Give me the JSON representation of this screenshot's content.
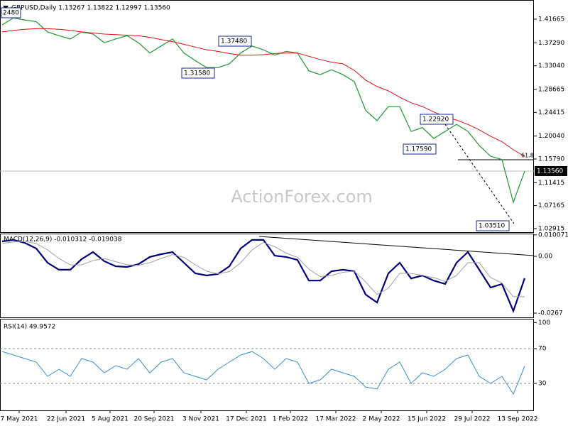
{
  "chart_data": [
    {
      "type": "line",
      "title": "GBPUSD,Daily  1.13267 1.13822 1.12997 1.13560",
      "x": [
        0,
        8,
        16,
        24,
        32,
        40,
        48,
        56,
        64,
        72,
        80,
        88,
        96,
        104,
        112,
        120,
        128,
        136,
        144,
        152,
        160,
        168,
        176,
        184,
        192,
        200,
        208,
        216,
        224,
        232,
        240,
        248,
        256,
        264,
        272,
        280,
        288,
        296,
        304,
        312,
        320,
        328,
        336,
        344,
        352,
        360,
        368
      ],
      "xlim": [
        -1.5,
        374.5
      ],
      "ylim": [
        1.0226,
        1.4521
      ],
      "yticks": [
        1.41665,
        {
          "value": 1.3729,
          "label": "1.37290"
        },
        {
          "value": 1.3304,
          "label": "1.33040"
        },
        1.28665,
        1.24415,
        {
          "value": 1.2004,
          "label": "1.20040"
        },
        {
          "value": 1.1579,
          "label": "1.15790"
        },
        1.11415,
        1.07165,
        1.02915
      ],
      "price_marker": {
        "value": 1.1356,
        "label": "1.13560"
      },
      "annotations": [
        "2480",
        "1.37480",
        "1.31580",
        "1.22920",
        "1.17590",
        "1.03510",
        "61.8"
      ],
      "watermark": "ActionForex.com",
      "series": [
        {
          "color": "#2e9e3e",
          "values": [
            1.406,
            1.419,
            1.415,
            1.412,
            1.393,
            1.386,
            1.38,
            1.393,
            1.389,
            1.373,
            1.38,
            1.386,
            1.373,
            1.354,
            1.367,
            1.38,
            1.354,
            1.34,
            1.327,
            1.327,
            1.334,
            1.354,
            1.367,
            1.36,
            1.35,
            1.357,
            1.354,
            1.321,
            1.314,
            1.323,
            1.314,
            1.301,
            1.248,
            1.229,
            1.255,
            1.255,
            1.209,
            1.216,
            1.196,
            1.209,
            1.222,
            1.209,
            1.183,
            1.163,
            1.157,
            1.078,
            1.1356
          ]
        },
        {
          "color": "#e01010",
          "values": [
            1.393,
            1.396,
            1.398,
            1.399,
            1.399,
            1.398,
            1.396,
            1.393,
            1.391,
            1.389,
            1.388,
            1.387,
            1.386,
            1.383,
            1.379,
            1.375,
            1.37,
            1.365,
            1.36,
            1.357,
            1.353,
            1.35,
            1.35,
            1.351,
            1.353,
            1.354,
            1.354,
            1.348,
            1.342,
            1.337,
            1.334,
            1.322,
            1.304,
            1.292,
            1.284,
            1.272,
            1.262,
            1.255,
            1.245,
            1.236,
            1.23,
            1.222,
            1.212,
            1.2,
            1.19,
            1.175,
            1.163
          ]
        }
      ]
    },
    {
      "type": "line",
      "title": "MACD(12,26,9) -0.010312 -0.019038",
      "ylim": [
        -0.0287,
        0.01068
      ],
      "yticks": [
        0.010071,
        {
          "value": 0,
          "label": "0.00"
        },
        -0.0267
      ],
      "series": [
        {
          "color": "#00007a",
          "values": [
            0.007,
            0.0077,
            0.0063,
            0.0037,
            -0.003,
            -0.0063,
            -0.0063,
            -0.0013,
            0.002,
            -0.0023,
            -0.0047,
            -0.005,
            -0.0037,
            -0.0003,
            0.001,
            0.002,
            -0.003,
            -0.008,
            -0.009,
            -0.0083,
            -0.0047,
            0.0037,
            0.0077,
            0.0077,
            0.0003,
            -0.0003,
            -0.0017,
            -0.0114,
            -0.0114,
            -0.007,
            -0.0063,
            -0.007,
            -0.018,
            -0.0217,
            -0.008,
            -0.003,
            -0.0104,
            -0.009,
            -0.0114,
            -0.013,
            -0.003,
            0.002,
            -0.0063,
            -0.0147,
            -0.013,
            -0.0257,
            -0.0103
          ]
        },
        {
          "color": "#a0a0a0",
          "values": [
            0.006,
            0.0068,
            0.007,
            0.006,
            0.003,
            -0.001,
            -0.004,
            -0.004,
            -0.002,
            -0.001,
            -0.0025,
            -0.004,
            -0.0042,
            -0.003,
            -0.001,
            0.0008,
            -0.0005,
            -0.004,
            -0.007,
            -0.0082,
            -0.0072,
            -0.003,
            0.003,
            0.0065,
            0.0045,
            0.0015,
            -0.0005,
            -0.006,
            -0.0095,
            -0.009,
            -0.0075,
            -0.007,
            -0.012,
            -0.018,
            -0.015,
            -0.008,
            -0.008,
            -0.009,
            -0.01,
            -0.0118,
            -0.009,
            -0.003,
            -0.003,
            -0.01,
            -0.0125,
            -0.019,
            -0.019
          ]
        }
      ]
    },
    {
      "type": "line",
      "title": "RSI(14) 49.9572",
      "ylim": [
        -1,
        103.5
      ],
      "yticks": [
        100,
        70,
        30
      ],
      "levels": [
        70,
        30
      ],
      "xticks": [
        {
          "value": 12,
          "label": "7 May 2021"
        },
        {
          "value": 45,
          "label": "22 Jun 2021"
        },
        {
          "value": 76,
          "label": "5 Aug 2021"
        },
        {
          "value": 107,
          "label": "20 Sep 2021"
        },
        {
          "value": 140,
          "label": "3 Nov 2021"
        },
        {
          "value": 172,
          "label": "17 Dec 2021"
        },
        {
          "value": 203,
          "label": "1 Feb 2022"
        },
        {
          "value": 235,
          "label": "17 Mar 2022"
        },
        {
          "value": 267,
          "label": "2 May 2022"
        },
        {
          "value": 299,
          "label": "15 Jun 2022"
        },
        {
          "value": 331,
          "label": "29 Jul 2022"
        },
        {
          "value": 363,
          "label": "13 Sep 2022"
        }
      ],
      "series": [
        {
          "color": "#3b8fd6",
          "values": [
            66.7,
            62.7,
            58.6,
            54.5,
            38.2,
            46.3,
            38.2,
            58.6,
            54.5,
            42.2,
            50.4,
            46.3,
            58.6,
            42.2,
            54.5,
            58.6,
            42.2,
            38.2,
            34.1,
            46.3,
            54.5,
            62.7,
            66.7,
            58.6,
            46.3,
            58.6,
            54.5,
            30.0,
            34.1,
            46.3,
            42.2,
            38.2,
            25.9,
            23.5,
            46.3,
            54.5,
            30.0,
            42.2,
            38.2,
            46.3,
            58.6,
            62.7,
            38.2,
            30.0,
            38.2,
            17.8,
            50.0
          ]
        }
      ]
    }
  ]
}
